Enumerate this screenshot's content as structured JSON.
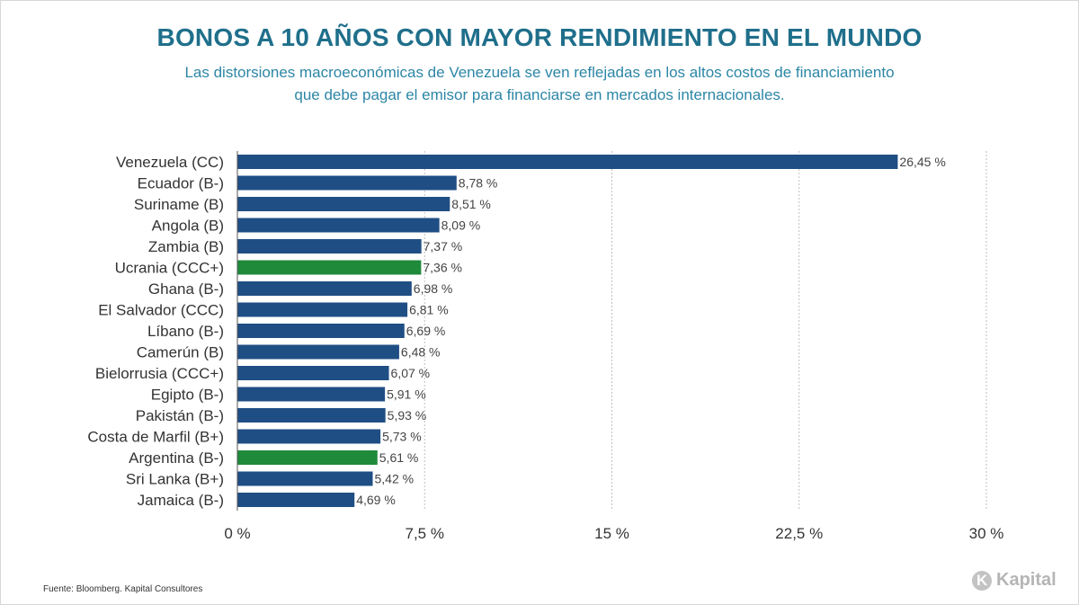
{
  "header": {
    "title": "BONOS A 10 AÑOS CON MAYOR RENDIMIENTO EN EL MUNDO",
    "subtitle_line1": "Las distorsiones macroeconómicas de Venezuela se ven reflejadas en los altos costos de financiamiento",
    "subtitle_line2": "que debe pagar el emisor para financiarse en mercados internacionales."
  },
  "footer": {
    "source": "Fuente: Bloomberg. Kapital Consultores",
    "logo_text": "Kapital"
  },
  "colors": {
    "default_bar": "#1f4e84",
    "highlight_bar": "#1e8a3a",
    "title": "#1f6f8b",
    "gridline": "#bfbfbf"
  },
  "chart_data": {
    "type": "bar",
    "orientation": "horizontal",
    "title": "BONOS A 10 AÑOS CON MAYOR RENDIMIENTO EN EL MUNDO",
    "xlabel": "",
    "ylabel": "",
    "xlim": [
      0,
      30
    ],
    "grid": true,
    "ticks": [
      {
        "value": 0,
        "label": "0 %"
      },
      {
        "value": 7.5,
        "label": "7,5 %"
      },
      {
        "value": 15,
        "label": "15 %"
      },
      {
        "value": 22.5,
        "label": "22,5 %"
      },
      {
        "value": 30,
        "label": "30 %"
      }
    ],
    "categories": [
      "Venezuela (CC)",
      "Ecuador (B-)",
      "Suriname (B)",
      "Angola (B)",
      "Zambia (B)",
      "Ucrania (CCC+)",
      "Ghana (B-)",
      "El Salvador (CCC)",
      "Líbano (B-)",
      "Camerún (B)",
      "Bielorrusia (CCC+)",
      "Egipto (B-)",
      "Pakistán (B-)",
      "Costa de Marfil (B+)",
      "Argentina (B-)",
      "Sri Lanka (B+)",
      "Jamaica (B-)"
    ],
    "values": [
      26.45,
      8.78,
      8.51,
      8.09,
      7.37,
      7.36,
      6.98,
      6.81,
      6.69,
      6.48,
      6.07,
      5.91,
      5.93,
      5.73,
      5.61,
      5.42,
      4.69
    ],
    "value_labels": [
      "26,45 %",
      "8,78 %",
      "8,51 %",
      "8,09 %",
      "7,37 %",
      "7,36 %",
      "6,98 %",
      "6,81 %",
      "6,69 %",
      "6,48 %",
      "6,07 %",
      "5,91 %",
      "5,93 %",
      "5,73 %",
      "5,61 %",
      "5,42 %",
      "4,69 %"
    ],
    "highlighted": [
      "Ucrania (CCC+)",
      "Argentina (B-)"
    ]
  }
}
